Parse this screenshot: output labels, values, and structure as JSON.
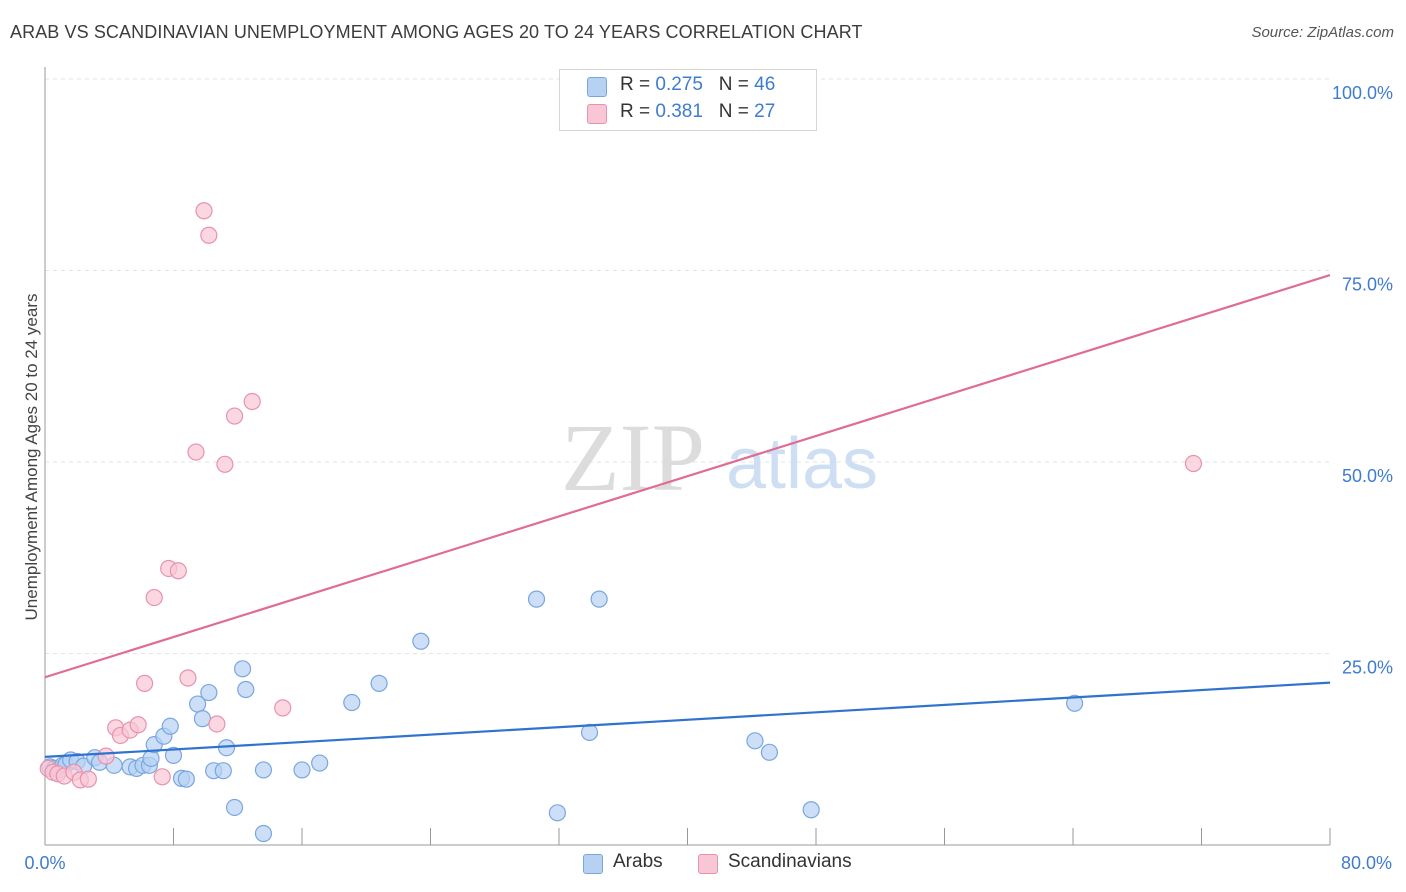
{
  "title": "ARAB VS SCANDINAVIAN UNEMPLOYMENT AMONG AGES 20 TO 24 YEARS CORRELATION CHART",
  "source": "Source: ZipAtlas.com",
  "watermark": {
    "zip": "ZIP",
    "atlas": "atlas"
  },
  "legend_top": {
    "rows": [
      {
        "r_label": "R = ",
        "r_value": "0.275",
        "n_label": "N = ",
        "n_value": "46"
      },
      {
        "r_label": "R = ",
        "r_value": "0.381",
        "n_label": "N = ",
        "n_value": "27"
      }
    ]
  },
  "legend_bottom": {
    "arabs": "Arabs",
    "scandinavians": "Scandinavians"
  },
  "colors": {
    "arabs_fill": "#b7d1f3",
    "arabs_stroke": "#7aa6e0",
    "arabs_line": "#2f72d0",
    "scand_fill": "#f9c6d5",
    "scand_stroke": "#e892ad",
    "scand_line": "#e06b95",
    "tick_label": "#3f7bd0",
    "grid": "#e3e3e3"
  },
  "chart_data": {
    "type": "scatter",
    "title": "ARAB VS SCANDINAVIAN UNEMPLOYMENT AMONG AGES 20 TO 24 YEARS CORRELATION CHART",
    "xlabel": "",
    "ylabel": "Unemployment Among Ages 20 to 24 years",
    "xlim": [
      0,
      80
    ],
    "ylim": [
      0,
      100
    ],
    "x_tick_labels": [
      "0.0%",
      "80.0%"
    ],
    "y_ticks": [
      25,
      50,
      75,
      100
    ],
    "y_tick_labels": [
      "25.0%",
      "50.0%",
      "75.0%",
      "100.0%"
    ],
    "grid": true,
    "legend_position": "top-center",
    "series": [
      {
        "name": "Arabs",
        "r": 0.275,
        "n": 46,
        "trend": {
          "x": [
            0,
            80
          ],
          "y": [
            11.5,
            21.2
          ]
        },
        "points": [
          [
            0.3,
            10.2
          ],
          [
            0.6,
            10.0
          ],
          [
            0.9,
            9.8
          ],
          [
            1.1,
            10.4
          ],
          [
            1.3,
            10.5
          ],
          [
            1.6,
            11.1
          ],
          [
            2.0,
            10.9
          ],
          [
            2.4,
            10.3
          ],
          [
            3.1,
            11.4
          ],
          [
            3.4,
            10.8
          ],
          [
            4.3,
            10.4
          ],
          [
            5.3,
            10.2
          ],
          [
            5.7,
            10.0
          ],
          [
            6.1,
            10.4
          ],
          [
            6.5,
            10.4
          ],
          [
            6.6,
            11.3
          ],
          [
            6.8,
            13.1
          ],
          [
            7.4,
            14.2
          ],
          [
            7.8,
            15.5
          ],
          [
            8.0,
            11.7
          ],
          [
            8.5,
            8.7
          ],
          [
            8.8,
            8.6
          ],
          [
            9.5,
            18.4
          ],
          [
            9.8,
            16.5
          ],
          [
            10.2,
            19.9
          ],
          [
            10.5,
            9.7
          ],
          [
            11.1,
            9.7
          ],
          [
            11.3,
            12.7
          ],
          [
            11.8,
            4.9
          ],
          [
            12.3,
            23.0
          ],
          [
            12.5,
            20.3
          ],
          [
            13.6,
            9.8
          ],
          [
            13.6,
            1.5
          ],
          [
            16.0,
            9.8
          ],
          [
            17.1,
            10.7
          ],
          [
            19.1,
            18.6
          ],
          [
            20.8,
            21.1
          ],
          [
            23.4,
            26.6
          ],
          [
            30.6,
            32.1
          ],
          [
            31.9,
            4.2
          ],
          [
            33.9,
            14.7
          ],
          [
            34.5,
            32.1
          ],
          [
            44.2,
            13.6
          ],
          [
            45.1,
            12.1
          ],
          [
            47.7,
            4.6
          ],
          [
            64.1,
            18.5
          ]
        ]
      },
      {
        "name": "Scandinavians",
        "r": 0.381,
        "n": 27,
        "trend": {
          "x": [
            0,
            80
          ],
          "y": [
            21.9,
            74.4
          ]
        },
        "points": [
          [
            0.2,
            10.0
          ],
          [
            0.5,
            9.5
          ],
          [
            0.8,
            9.3
          ],
          [
            1.2,
            9.0
          ],
          [
            1.8,
            9.5
          ],
          [
            2.2,
            8.5
          ],
          [
            2.7,
            8.6
          ],
          [
            3.8,
            11.6
          ],
          [
            4.4,
            15.3
          ],
          [
            4.7,
            14.3
          ],
          [
            5.3,
            15.0
          ],
          [
            5.8,
            15.7
          ],
          [
            6.2,
            21.1
          ],
          [
            6.8,
            32.3
          ],
          [
            7.3,
            8.9
          ],
          [
            7.7,
            36.1
          ],
          [
            8.3,
            35.8
          ],
          [
            8.9,
            21.8
          ],
          [
            9.4,
            51.3
          ],
          [
            9.9,
            82.8
          ],
          [
            10.2,
            79.6
          ],
          [
            10.7,
            15.8
          ],
          [
            11.2,
            49.7
          ],
          [
            11.8,
            56.0
          ],
          [
            12.9,
            57.9
          ],
          [
            14.8,
            17.9
          ],
          [
            71.5,
            49.8
          ]
        ]
      }
    ]
  }
}
